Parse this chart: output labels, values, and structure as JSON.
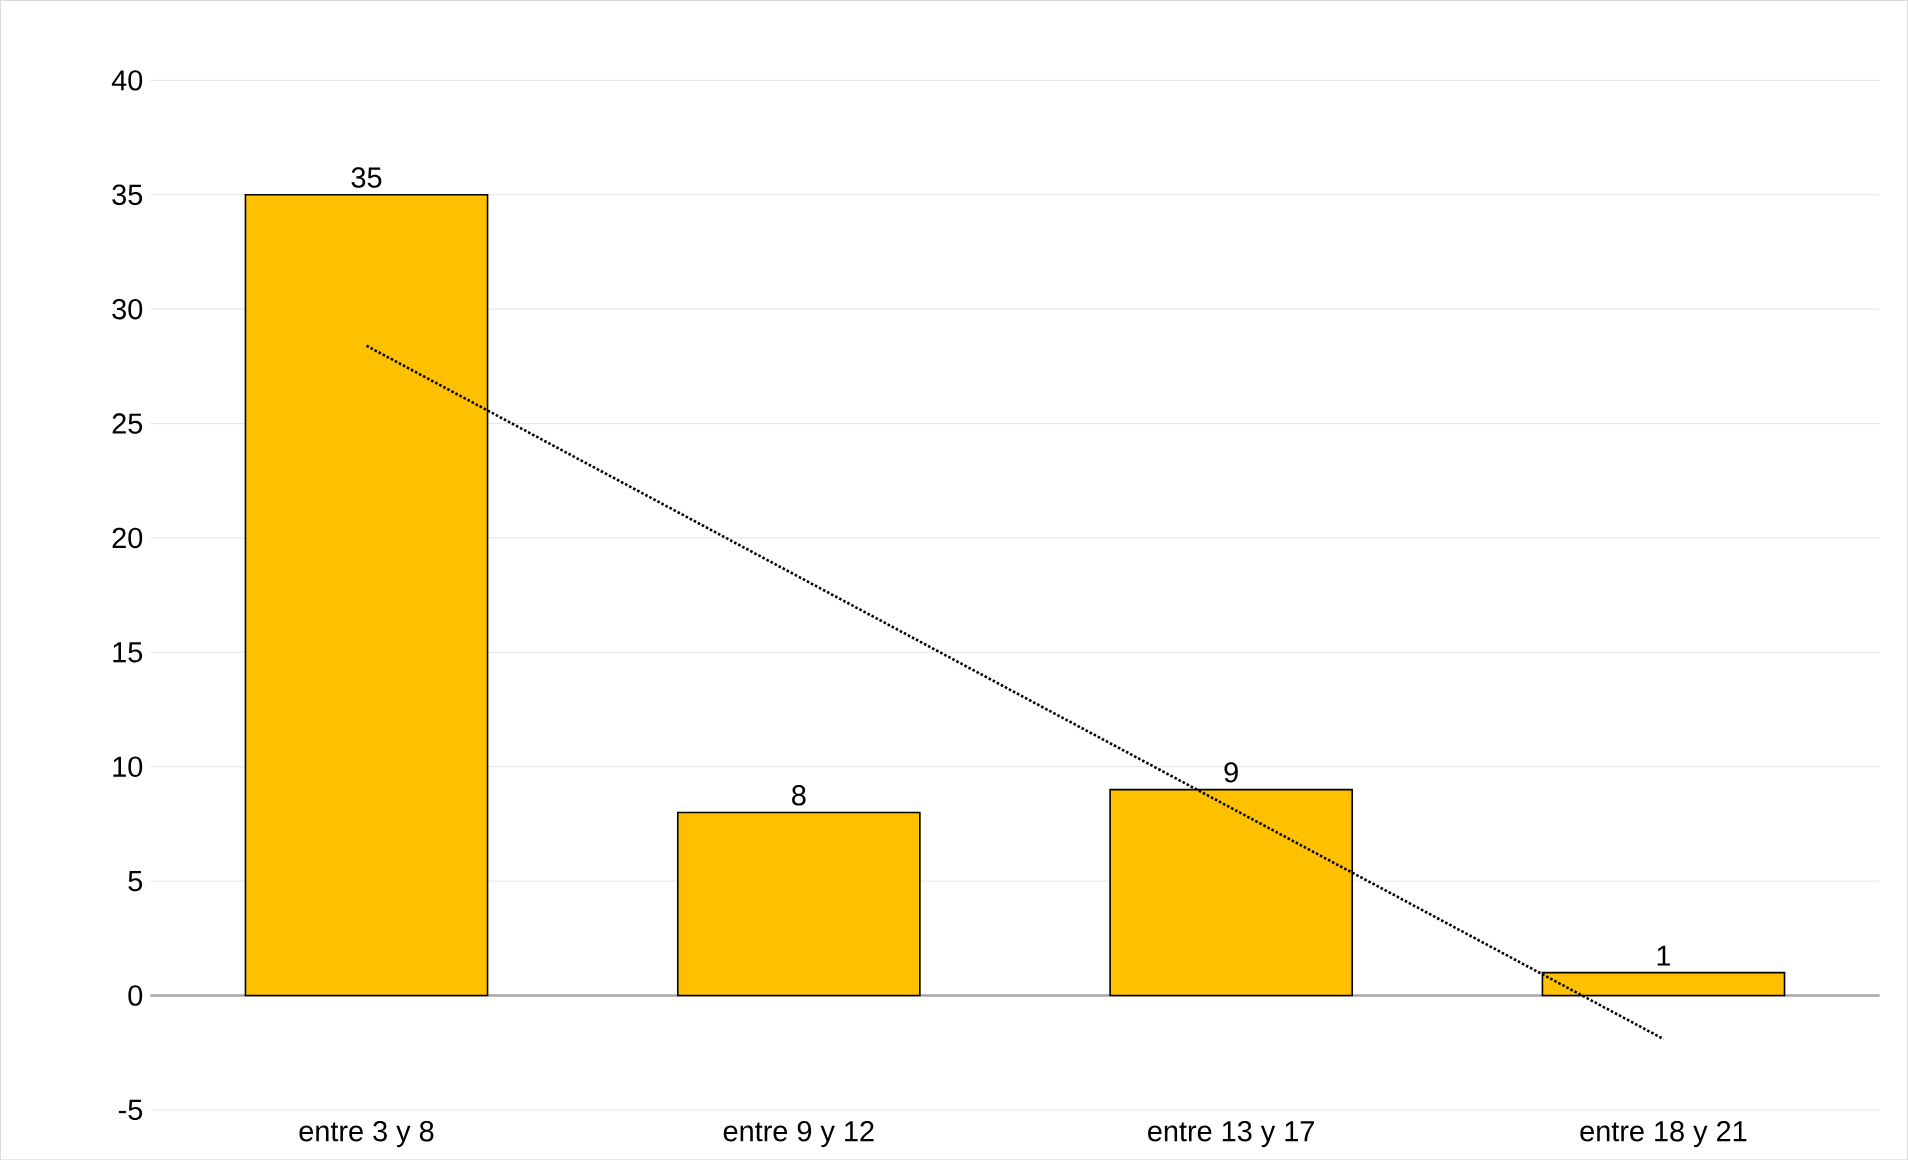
{
  "chart_data": {
    "type": "bar",
    "categories": [
      "entre 3 y 8",
      "entre 9 y 12",
      "entre 13 y 17",
      "entre 18 y 21"
    ],
    "series": [
      {
        "color": "#ffc000",
        "values": [
          35,
          8,
          9,
          1
        ],
        "value_labels": [
          "35",
          "8",
          "9",
          "1"
        ]
      },
      {
        "type": "line",
        "color": "#000000",
        "line_style": "dotted",
        "values": [
          28.4,
          18.3,
          8.2,
          -1.9
        ]
      }
    ],
    "ylim": [
      -5,
      40
    ],
    "yticks": [
      -5,
      0,
      5,
      10,
      15,
      20,
      25,
      30,
      35,
      40
    ],
    "grid": "y"
  }
}
